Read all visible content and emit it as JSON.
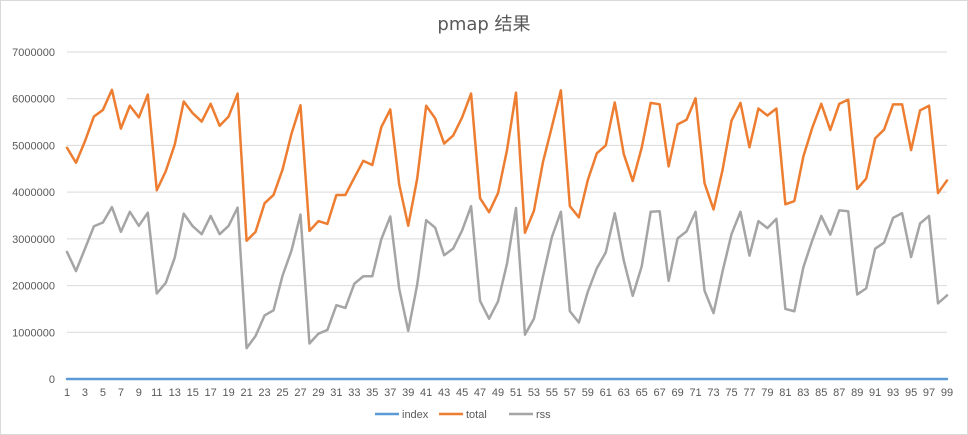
{
  "chart_data": {
    "type": "line",
    "title": "pmap 结果",
    "xlabel": "",
    "ylabel": "",
    "ylim": [
      0,
      7000000
    ],
    "y_ticks": [
      0,
      1000000,
      2000000,
      3000000,
      4000000,
      5000000,
      6000000,
      7000000
    ],
    "y_tick_labels": [
      "0",
      "1000000",
      "2000000",
      "3000000",
      "4000000",
      "5000000",
      "6000000",
      "7000000"
    ],
    "x": [
      1,
      2,
      3,
      4,
      5,
      6,
      7,
      8,
      9,
      10,
      11,
      12,
      13,
      14,
      15,
      16,
      17,
      18,
      19,
      20,
      21,
      22,
      23,
      24,
      25,
      26,
      27,
      28,
      29,
      30,
      31,
      32,
      33,
      34,
      35,
      36,
      37,
      38,
      39,
      40,
      41,
      42,
      43,
      44,
      45,
      46,
      47,
      48,
      49,
      50,
      51,
      52,
      53,
      54,
      55,
      56,
      57,
      58,
      59,
      60,
      61,
      62,
      63,
      64,
      65,
      66,
      67,
      68,
      69,
      70,
      71,
      72,
      73,
      74,
      75,
      76,
      77,
      78,
      79,
      80,
      81,
      82,
      83,
      84,
      85,
      86,
      87,
      88,
      89,
      90,
      91,
      92,
      93,
      94,
      95,
      96,
      97,
      98,
      99
    ],
    "x_tick_labels": [
      "1",
      "3",
      "5",
      "7",
      "9",
      "11",
      "13",
      "15",
      "17",
      "19",
      "21",
      "23",
      "25",
      "27",
      "29",
      "31",
      "33",
      "35",
      "37",
      "39",
      "41",
      "43",
      "45",
      "47",
      "49",
      "51",
      "53",
      "55",
      "57",
      "59",
      "61",
      "63",
      "65",
      "67",
      "69",
      "71",
      "73",
      "75",
      "77",
      "79",
      "81",
      "83",
      "85",
      "87",
      "89",
      "91",
      "93",
      "95",
      "97",
      "99"
    ],
    "grid": true,
    "legend_position": "bottom",
    "series": [
      {
        "name": "index",
        "color": "#5b9bd5",
        "values": [
          1,
          2,
          3,
          4,
          5,
          6,
          7,
          8,
          9,
          10,
          11,
          12,
          13,
          14,
          15,
          16,
          17,
          18,
          19,
          20,
          21,
          22,
          23,
          24,
          25,
          26,
          27,
          28,
          29,
          30,
          31,
          32,
          33,
          34,
          35,
          36,
          37,
          38,
          39,
          40,
          41,
          42,
          43,
          44,
          45,
          46,
          47,
          48,
          49,
          50,
          51,
          52,
          53,
          54,
          55,
          56,
          57,
          58,
          59,
          60,
          61,
          62,
          63,
          64,
          65,
          66,
          67,
          68,
          69,
          70,
          71,
          72,
          73,
          74,
          75,
          76,
          77,
          78,
          79,
          80,
          81,
          82,
          83,
          84,
          85,
          86,
          87,
          88,
          89,
          90,
          91,
          92,
          93,
          94,
          95,
          96,
          97,
          98,
          99
        ]
      },
      {
        "name": "total",
        "color": "#ed7d31",
        "values": [
          4950000,
          4630000,
          5090000,
          5620000,
          5760000,
          6190000,
          5360000,
          5850000,
          5600000,
          6090000,
          4040000,
          4450000,
          5020000,
          5940000,
          5690000,
          5510000,
          5890000,
          5420000,
          5620000,
          6110000,
          2960000,
          3150000,
          3760000,
          3940000,
          4480000,
          5250000,
          5860000,
          3170000,
          3380000,
          3320000,
          3940000,
          3940000,
          4310000,
          4670000,
          4580000,
          5390000,
          5770000,
          4160000,
          3280000,
          4290000,
          5850000,
          5580000,
          5040000,
          5210000,
          5600000,
          6110000,
          3870000,
          3570000,
          3980000,
          4900000,
          6130000,
          3130000,
          3600000,
          4640000,
          5400000,
          6180000,
          3700000,
          3460000,
          4260000,
          4830000,
          5000000,
          5920000,
          4820000,
          4240000,
          4950000,
          5910000,
          5880000,
          4550000,
          5450000,
          5550000,
          6010000,
          4190000,
          3630000,
          4470000,
          5530000,
          5910000,
          4960000,
          5790000,
          5640000,
          5790000,
          3740000,
          3810000,
          4760000,
          5380000,
          5890000,
          5330000,
          5890000,
          5980000,
          4070000,
          4290000,
          5150000,
          5340000,
          5880000,
          5880000,
          4900000,
          5750000,
          5850000,
          3980000,
          4250000
        ]
      },
      {
        "name": "rss",
        "color": "#a5a5a5",
        "values": [
          2720000,
          2310000,
          2790000,
          3270000,
          3350000,
          3680000,
          3150000,
          3580000,
          3280000,
          3560000,
          1830000,
          2060000,
          2600000,
          3540000,
          3270000,
          3100000,
          3490000,
          3100000,
          3280000,
          3670000,
          660000,
          920000,
          1360000,
          1470000,
          2210000,
          2750000,
          3520000,
          760000,
          970000,
          1050000,
          1580000,
          1520000,
          2040000,
          2200000,
          2200000,
          2990000,
          3480000,
          1930000,
          1030000,
          2020000,
          3400000,
          3240000,
          2650000,
          2790000,
          3180000,
          3700000,
          1670000,
          1290000,
          1660000,
          2470000,
          3660000,
          950000,
          1290000,
          2190000,
          3040000,
          3580000,
          1450000,
          1210000,
          1870000,
          2370000,
          2710000,
          3550000,
          2540000,
          1780000,
          2410000,
          3580000,
          3590000,
          2100000,
          3010000,
          3160000,
          3580000,
          1890000,
          1410000,
          2300000,
          3100000,
          3580000,
          2640000,
          3380000,
          3230000,
          3430000,
          1500000,
          1450000,
          2390000,
          2970000,
          3490000,
          3090000,
          3610000,
          3590000,
          1810000,
          1940000,
          2790000,
          2920000,
          3450000,
          3550000,
          2610000,
          3330000,
          3490000,
          1620000,
          1790000
        ]
      }
    ]
  }
}
